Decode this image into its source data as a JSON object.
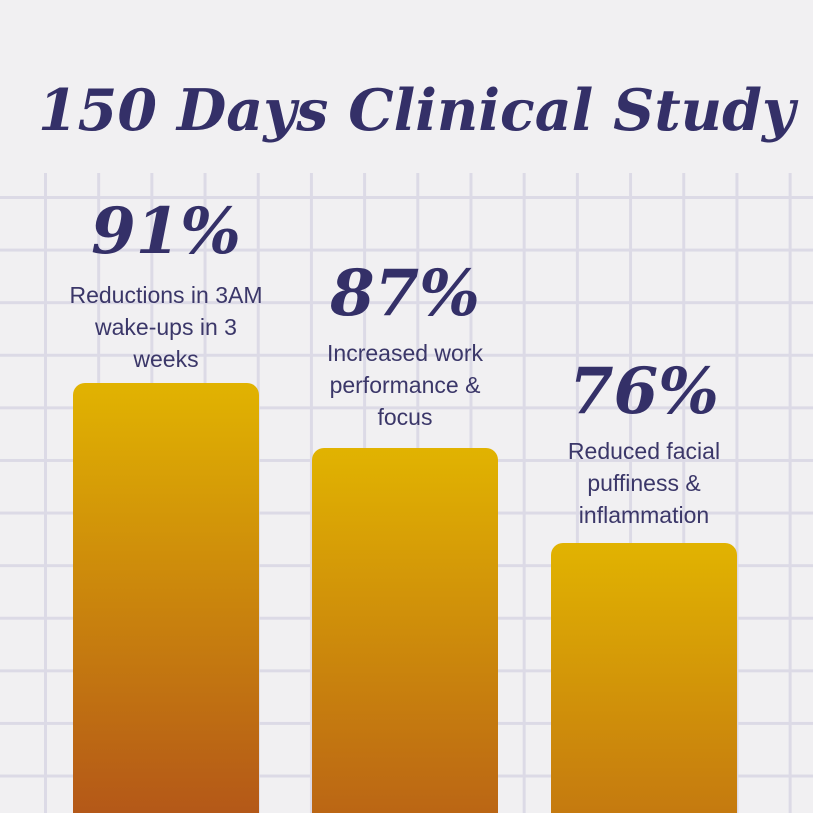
{
  "title": "150 Days Clinical Study",
  "colors": {
    "background": "#f1f0f2",
    "grid_line": "#dcdae6",
    "heading_navy": "#343068",
    "body_navy": "#3b3769",
    "bar_gradient_top": "#e1b301",
    "bar_gradient_bottom": "#b45818"
  },
  "chart_data": {
    "type": "bar",
    "title": "150 Days Clinical Study",
    "categories": [
      "Reductions in 3AM wake-ups in 3 weeks",
      "Increased work performance & focus",
      "Reduced facial puffiness & inflammation"
    ],
    "values": [
      91,
      87,
      76
    ],
    "unit": "%",
    "value_labels": [
      "91%",
      "87%",
      "76%"
    ],
    "xlabel": "",
    "ylabel": "",
    "legend": "none",
    "grid": "graph-paper background, no axes or tick labels",
    "bar_style": "vertical gold-to-rust gradient bars with rounded tops, labels above bars"
  },
  "cards": [
    {
      "value": "91%",
      "desc_lines": [
        "Reductions in 3AM",
        "wake-ups in 3",
        "weeks"
      ]
    },
    {
      "value": "87%",
      "desc_lines": [
        "Increased work",
        "performance &",
        "focus"
      ]
    },
    {
      "value": "76%",
      "desc_lines": [
        "Reduced facial",
        "puffiness &",
        "inflammation"
      ]
    }
  ]
}
